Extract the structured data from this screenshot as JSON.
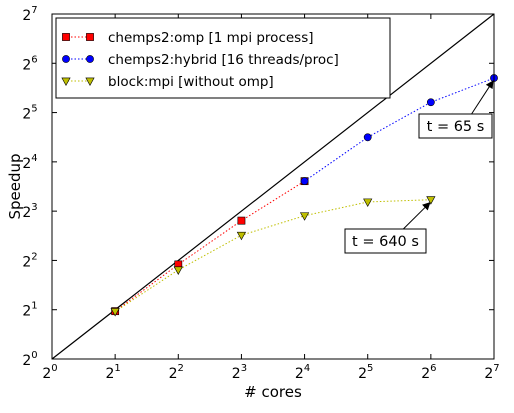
{
  "chart_data": {
    "type": "line",
    "xlabel": "# cores",
    "ylabel": "Speedup",
    "x_scale": "log2",
    "y_scale": "log2",
    "xlim": [
      1,
      128
    ],
    "ylim": [
      1,
      128
    ],
    "x_ticks": [
      {
        "base": "2",
        "exp": "0",
        "value": 1
      },
      {
        "base": "2",
        "exp": "1",
        "value": 2
      },
      {
        "base": "2",
        "exp": "2",
        "value": 4
      },
      {
        "base": "2",
        "exp": "3",
        "value": 8
      },
      {
        "base": "2",
        "exp": "4",
        "value": 16
      },
      {
        "base": "2",
        "exp": "5",
        "value": 32
      },
      {
        "base": "2",
        "exp": "6",
        "value": 64
      },
      {
        "base": "2",
        "exp": "7",
        "value": 128
      }
    ],
    "y_ticks": [
      {
        "base": "2",
        "exp": "0",
        "value": 1
      },
      {
        "base": "2",
        "exp": "1",
        "value": 2
      },
      {
        "base": "2",
        "exp": "2",
        "value": 4
      },
      {
        "base": "2",
        "exp": "3",
        "value": 8
      },
      {
        "base": "2",
        "exp": "4",
        "value": 16
      },
      {
        "base": "2",
        "exp": "5",
        "value": 32
      },
      {
        "base": "2",
        "exp": "6",
        "value": 64
      },
      {
        "base": "2",
        "exp": "7",
        "value": 128
      }
    ],
    "grid": false,
    "legend_position": "top-left",
    "reference_line": {
      "x": [
        1,
        128
      ],
      "y": [
        1,
        128
      ],
      "color": "#000000"
    },
    "series": [
      {
        "name": "chemps2:omp [1 mpi process]",
        "color": "#ff0000",
        "marker": "square",
        "x": [
          2,
          4,
          8,
          16
        ],
        "y": [
          1.96,
          3.78,
          7.0,
          12.2
        ]
      },
      {
        "name": "chemps2:hybrid [16 threads/proc]",
        "color": "#0000ff",
        "marker": "circle",
        "x": [
          16,
          32,
          64,
          128
        ],
        "y": [
          12.2,
          22.6,
          37.0,
          52.0
        ]
      },
      {
        "name": "block:mpi [without omp]",
        "color": "#bfbf00",
        "marker": "triangle-down",
        "x": [
          2,
          4,
          8,
          16,
          32,
          64
        ],
        "y": [
          1.95,
          3.5,
          5.7,
          7.5,
          9.1,
          9.4
        ]
      }
    ],
    "annotations": [
      {
        "text": "t = 65 s",
        "target_x": 128,
        "target_y": 52.0
      },
      {
        "text": "t = 640 s",
        "target_x": 64,
        "target_y": 9.4
      }
    ]
  }
}
